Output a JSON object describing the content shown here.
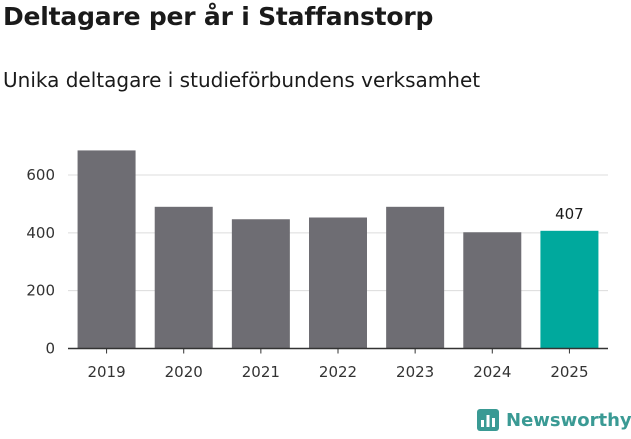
{
  "header": {
    "title": "Deltagare per år i Staffanstorp",
    "subtitle": "Unika deltagare i studieförbundens verksamhet"
  },
  "branding": {
    "name": "Newsworthy",
    "icon": "newsworthy-logo-icon",
    "color": "#3a9a94"
  },
  "chart_data": {
    "type": "bar",
    "title": "Deltagare per år i Staffanstorp",
    "subtitle": "Unika deltagare i studieförbundens verksamhet",
    "xlabel": "",
    "ylabel": "",
    "categories": [
      "2019",
      "2020",
      "2021",
      "2022",
      "2023",
      "2024",
      "2025"
    ],
    "values": [
      685,
      490,
      447,
      453,
      490,
      402,
      407
    ],
    "yticks": [
      0,
      200,
      400,
      600
    ],
    "ylim": [
      0,
      700
    ],
    "grid": true,
    "legend": "none",
    "bar_color": "#6e6d73",
    "highlight_color": "#00a99d",
    "highlight_index": 6,
    "data_labels": [
      {
        "index": 6,
        "text": "407"
      }
    ]
  }
}
